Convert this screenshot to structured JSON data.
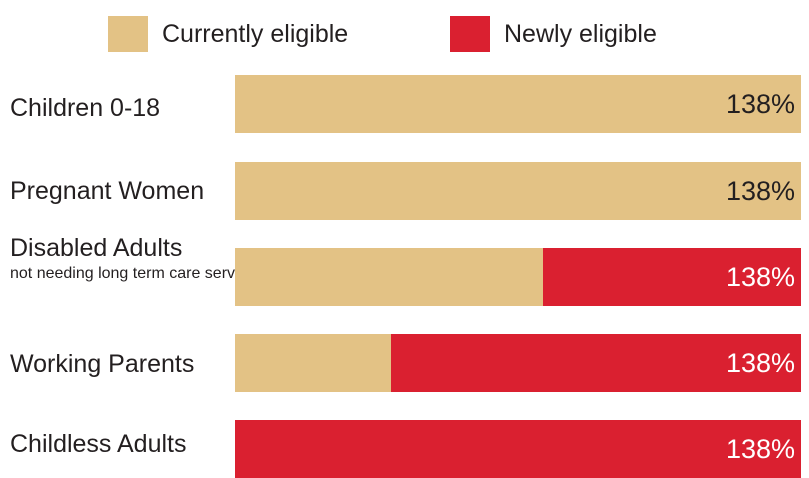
{
  "chart_data": {
    "type": "bar",
    "orientation": "horizontal",
    "stacked": true,
    "legend": "top",
    "grid": false,
    "categories": [
      "Children 0-18",
      "Pregnant Women",
      "Disabled Adults",
      "Working Parents",
      "Childless Adults"
    ],
    "category_sublabels": [
      "",
      "",
      "not needing long term care services",
      "",
      ""
    ],
    "series": [
      {
        "name": "Currently eligible",
        "color": "#e3c285",
        "values": [
          138,
          138,
          75,
          38,
          0
        ]
      },
      {
        "name": "Newly eligible",
        "color": "#da2030",
        "values": [
          0,
          0,
          63,
          100,
          138
        ]
      }
    ],
    "total": 138,
    "data_labels": [
      "138%",
      "138%",
      "138%",
      "138%",
      "138%"
    ],
    "xlim": [
      0,
      138
    ]
  }
}
